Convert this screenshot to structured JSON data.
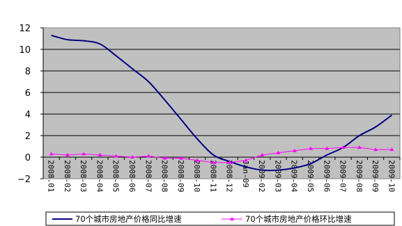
{
  "chart_data": {
    "type": "line",
    "title": "",
    "xlabel": "",
    "ylabel": "",
    "ylim": [
      -2,
      12
    ],
    "yticks": [
      -2,
      0,
      2,
      4,
      6,
      8,
      10,
      12
    ],
    "grid": "horizontal",
    "legend_position": "bottom",
    "plot_background": "#c0c0c0",
    "categories": [
      "2008.01",
      "2008-02",
      "2008-03",
      "2008-04",
      "2008-05",
      "2008-06",
      "2008-07",
      "2008-08",
      "2008-09",
      "2008-10",
      "2008-11",
      "2008-12",
      "Jan-09",
      "2009-02",
      "2009-03",
      "2009-04",
      "2009-05",
      "2009-06",
      "2009-07",
      "2009-08",
      "2009-09",
      "2009-10"
    ],
    "series": [
      {
        "name": "70个城市房地产价格同比增速",
        "color": "#000080",
        "marker": "none",
        "values": [
          11.3,
          10.9,
          10.8,
          10.5,
          9.4,
          8.2,
          7.0,
          5.3,
          3.5,
          1.7,
          0.2,
          -0.4,
          -0.9,
          -1.2,
          -1.2,
          -1.0,
          -0.6,
          0.2,
          0.9,
          2.0,
          2.8,
          3.9
        ]
      },
      {
        "name": "70个城市房地产价格环比增速",
        "color": "#ff00ff",
        "marker": "triangle",
        "values": [
          0.3,
          0.2,
          0.3,
          0.2,
          0.1,
          0.0,
          0.1,
          -0.1,
          -0.1,
          -0.3,
          -0.5,
          -0.5,
          -0.3,
          0.2,
          0.4,
          0.6,
          0.8,
          0.8,
          0.9,
          0.9,
          0.7,
          0.7
        ]
      }
    ]
  }
}
